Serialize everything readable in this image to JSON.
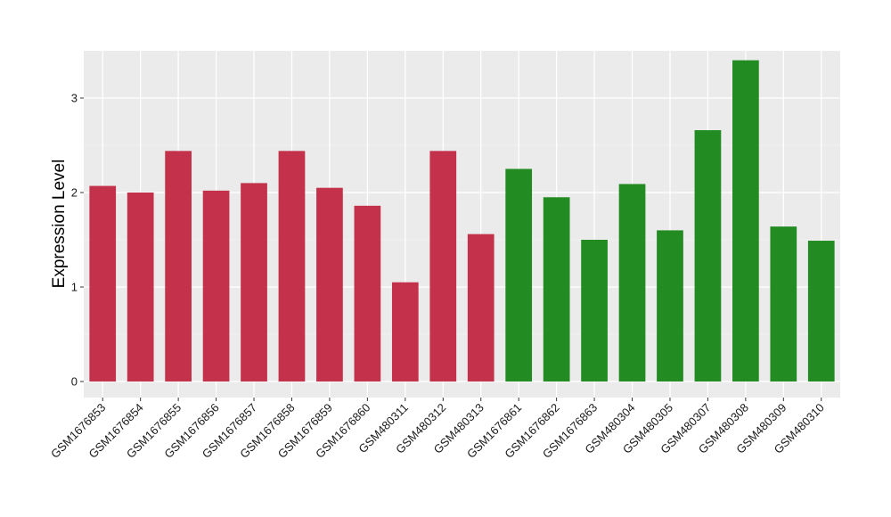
{
  "chart_data": {
    "type": "bar",
    "title": "",
    "xlabel": "",
    "ylabel": "Expression Level",
    "ylim": [
      -0.17,
      3.5
    ],
    "yticks": [
      0,
      1,
      2,
      3
    ],
    "grid": true,
    "legend": "none",
    "categories": [
      "GSM1676853",
      "GSM1676854",
      "GSM1676855",
      "GSM1676856",
      "GSM1676857",
      "GSM1676858",
      "GSM1676859",
      "GSM1676860",
      "GSM480311",
      "GSM480312",
      "GSM480313",
      "GSM1676861",
      "GSM1676862",
      "GSM1676863",
      "GSM480304",
      "GSM480305",
      "GSM480307",
      "GSM480308",
      "GSM480309",
      "GSM480310"
    ],
    "values": [
      2.07,
      2.0,
      2.44,
      2.02,
      2.1,
      2.44,
      2.05,
      1.86,
      1.05,
      2.44,
      1.56,
      2.25,
      1.95,
      1.5,
      2.09,
      1.6,
      2.66,
      3.4,
      1.64,
      1.49
    ],
    "colors": [
      "#c3314a",
      "#c3314a",
      "#c3314a",
      "#c3314a",
      "#c3314a",
      "#c3314a",
      "#c3314a",
      "#c3314a",
      "#c3314a",
      "#c3314a",
      "#c3314a",
      "#228b22",
      "#228b22",
      "#228b22",
      "#228b22",
      "#228b22",
      "#228b22",
      "#228b22",
      "#228b22",
      "#228b22"
    ]
  }
}
